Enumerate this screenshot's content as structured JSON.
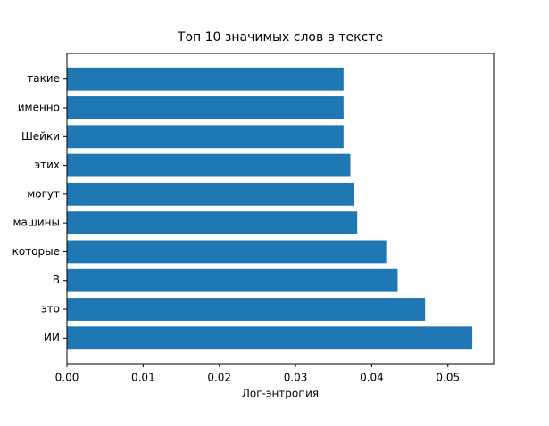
{
  "chart_data": {
    "type": "barh",
    "title": "Топ 10 значимых слов в тексте",
    "x_label": "Лог-энтропия",
    "categories": [
      "ИИ",
      "это",
      "В",
      "которые",
      "машины",
      "могут",
      "этих",
      "Шейки",
      "именно",
      "такие"
    ],
    "values": [
      0.0532,
      0.047,
      0.0434,
      0.0419,
      0.0381,
      0.0377,
      0.0372,
      0.0363,
      0.0363,
      0.0363
    ],
    "color": "#1f77b4",
    "xlim": [
      0,
      0.056
    ],
    "xticks": [
      {
        "value": 0,
        "label": "0.00"
      },
      {
        "value": 0.01,
        "label": "0.01"
      },
      {
        "value": 0.02,
        "label": "0.02"
      },
      {
        "value": 0.03,
        "label": "0.03"
      },
      {
        "value": 0.04,
        "label": "0.04"
      },
      {
        "value": 0.05,
        "label": "0.05"
      }
    ],
    "grid": false
  }
}
